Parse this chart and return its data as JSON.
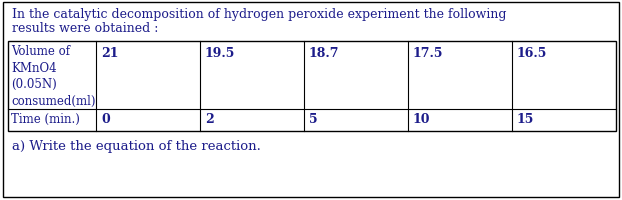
{
  "title_line1": "In the catalytic decomposition of hydrogen peroxide experiment the following",
  "title_line2": "results were obtained :",
  "row1_header": "Volume of\nKMnO4\n(0.05N)\nconsumed(ml)",
  "row1_values": [
    "21",
    "19.5",
    "18.7",
    "17.5",
    "16.5"
  ],
  "row2_header": "Time (min.)",
  "row2_values": [
    "0",
    "2",
    "5",
    "10",
    "15"
  ],
  "footer": "a) Write the equation of the reaction.",
  "bg_color": "#ffffff",
  "border_color": "#000000",
  "text_color": "#1c1c8a",
  "font_size_title": 9.0,
  "font_size_table": 8.5,
  "font_size_footer": 9.5,
  "fig_width": 6.22,
  "fig_height": 2.01,
  "dpi": 100
}
